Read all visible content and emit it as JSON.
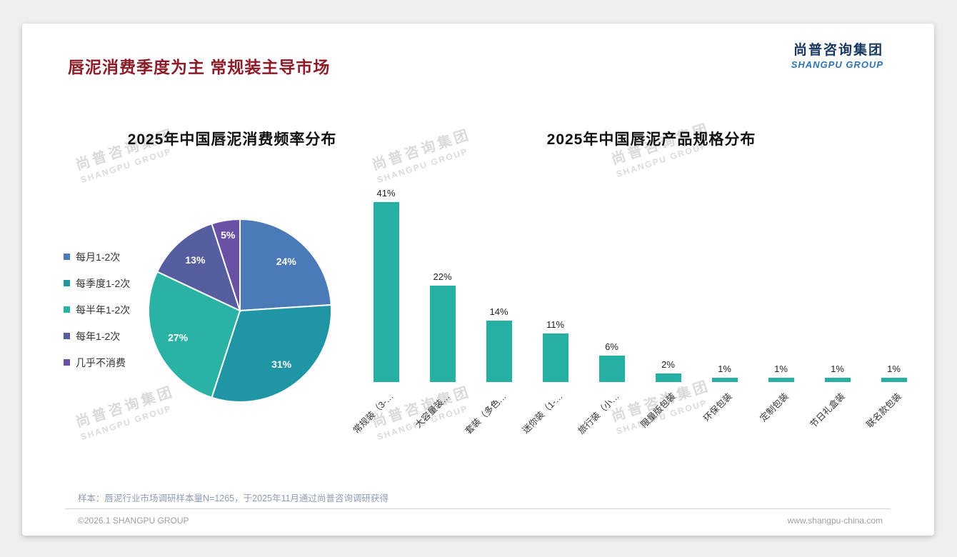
{
  "page": {
    "title": "唇泥消费季度为主 常规装主导市场",
    "logo": {
      "cn": "尚普咨询集团",
      "en": "SHANGPU GROUP"
    },
    "watermark": {
      "cn": "尚普咨询集团",
      "en": "SHANGPU GROUP"
    },
    "footnote": "样本：唇泥行业市场调研样本量N=1265，于2025年11月通过尚普咨询调研获得",
    "footer_left": "©2026.1 SHANGPU GROUP",
    "footer_right": "www.shangpu-china.com"
  },
  "chart_data": [
    {
      "type": "pie",
      "title": "2025年中国唇泥消费频率分布",
      "labels": [
        "每月1-2次",
        "每季度1-2次",
        "每半年1-2次",
        "每年1-2次",
        "几乎不消费"
      ],
      "values": [
        24,
        31,
        27,
        13,
        5
      ],
      "colors": [
        "#4a7ab8",
        "#2095a3",
        "#2ab3a4",
        "#575ea0",
        "#6a51a5"
      ],
      "legend_position": "left",
      "data_labels": "percent"
    },
    {
      "type": "bar",
      "title": "2025年中国唇泥产品规格分布",
      "categories": [
        "常规装（3-…",
        "大容量装…",
        "套装（多色…",
        "迷你装（1-…",
        "旅行装（小…",
        "限量版包装",
        "环保包装",
        "定制包装",
        "节日礼盒装",
        "联名款包装"
      ],
      "values": [
        41,
        22,
        14,
        11,
        6,
        2,
        1,
        1,
        1,
        1
      ],
      "bar_color": "#26b0a4",
      "xlabel": "",
      "ylabel": "",
      "ylim": [
        0,
        45
      ],
      "grid": false,
      "data_labels": "percent"
    }
  ]
}
